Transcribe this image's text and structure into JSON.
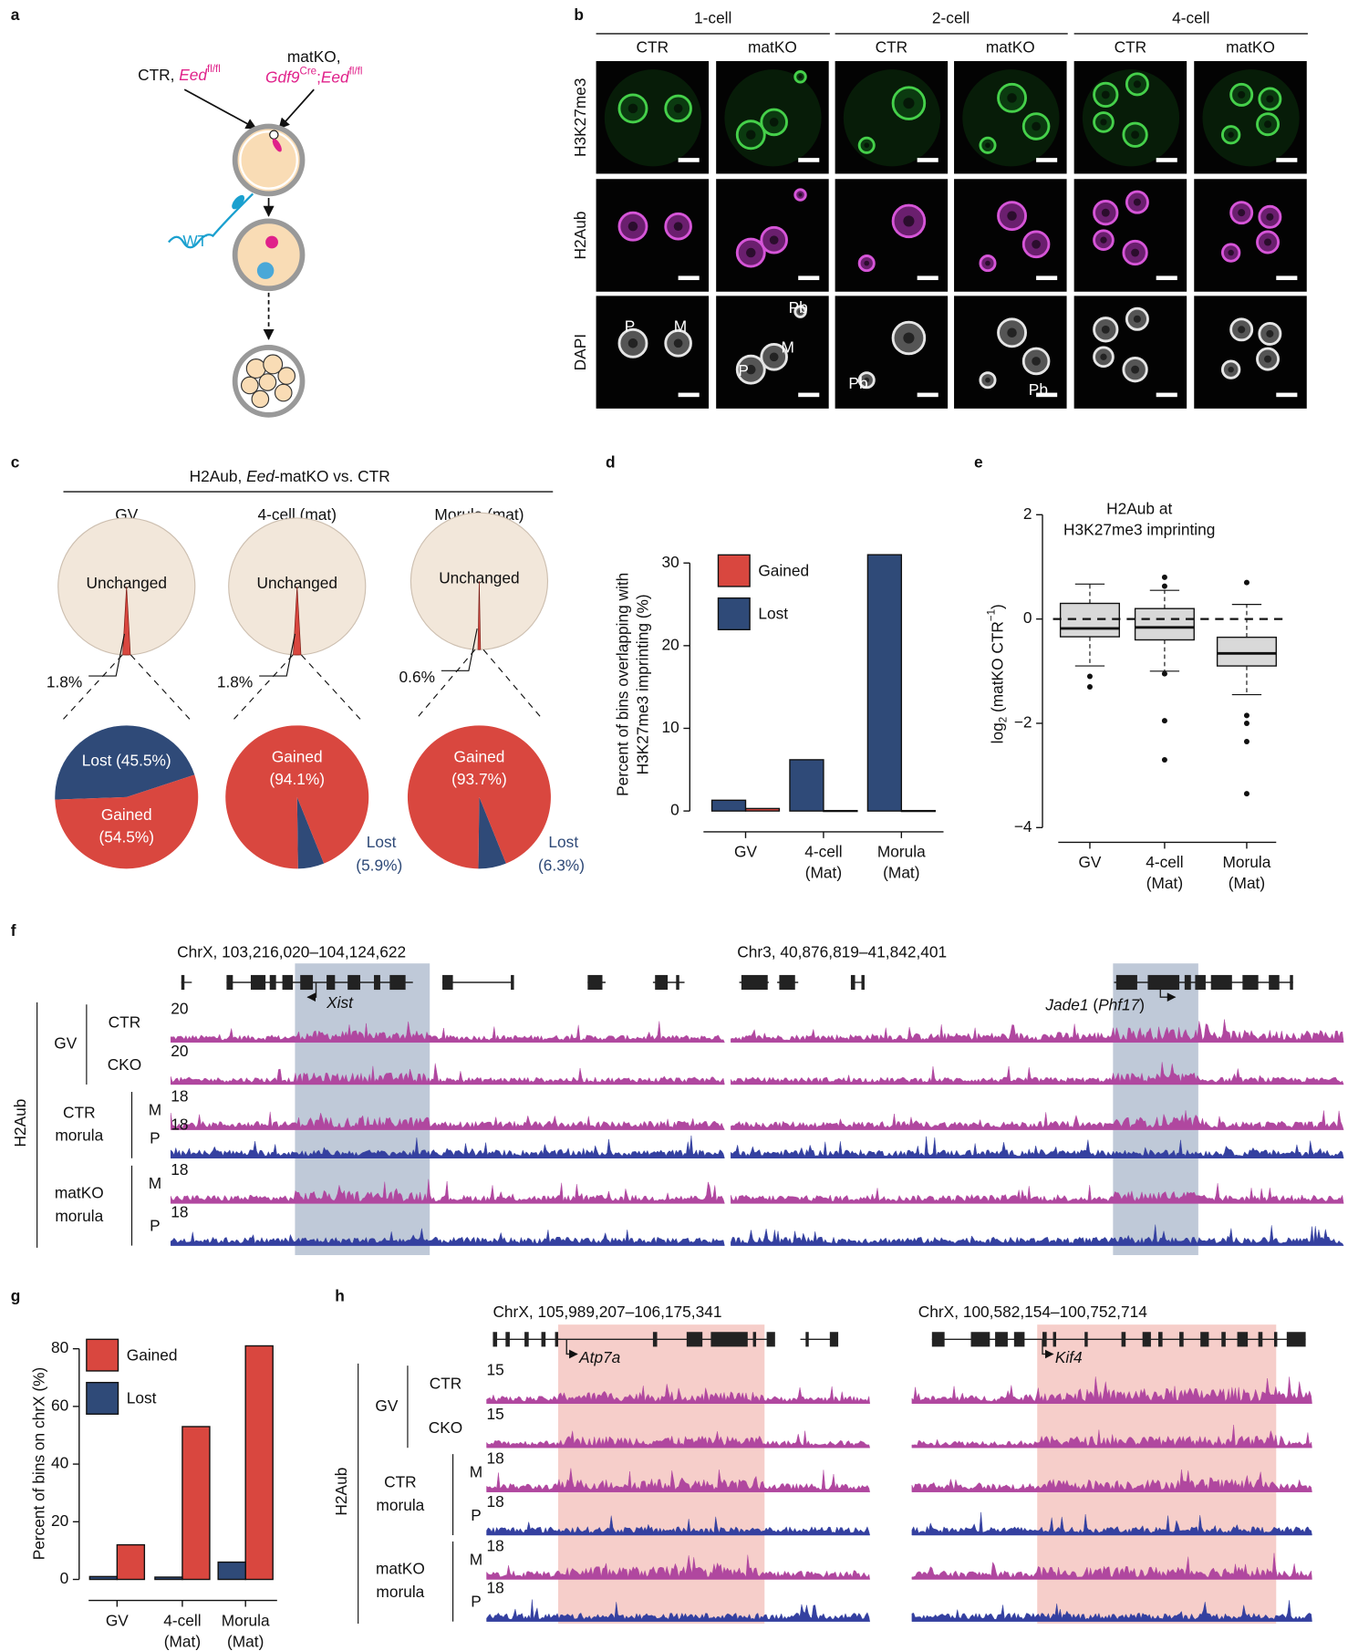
{
  "panels": {
    "a": {
      "label": "a",
      "ctr": {
        "name": "CTR, ",
        "gene": "Eed",
        "sup": "fl/fl"
      },
      "matko": {
        "name": "matKO,",
        "cre_gene": "Gdf9",
        "cre_sup": "Cre",
        "sep": ";",
        "gene": "Eed",
        "sup": "fl/fl"
      },
      "sperm": "WT"
    },
    "b": {
      "label": "b",
      "stages": [
        "1-cell",
        "2-cell",
        "4-cell"
      ],
      "conditions": [
        "CTR",
        "matKO",
        "CTR",
        "matKO",
        "CTR",
        "matKO"
      ],
      "rows": [
        "H3K27me3",
        "H2Aub",
        "DAPI"
      ],
      "dapi_labels": [
        [
          "P",
          "M"
        ],
        [
          "Pb",
          "M",
          "P"
        ],
        [
          "Pb"
        ],
        [
          "Pb"
        ]
      ]
    },
    "c": {
      "label": "c",
      "header": {
        "mark": "H2Aub, ",
        "gene": "Eed",
        "rest": "-matKO vs. CTR"
      }
    },
    "d": {
      "label": "d"
    },
    "e": {
      "label": "e"
    },
    "f": {
      "label": "f",
      "mark": "H2Aub",
      "regions": [
        {
          "coords": "ChrX, 103,216,020–104,124,622",
          "gene": "Xist"
        },
        {
          "coords": "Chr3, 40,876,819–41,842,401",
          "gene": "Jade1",
          "alias_open": " (",
          "alias": "Phf17",
          "alias_close": ")"
        }
      ],
      "groups": [
        {
          "label": [
            "GV"
          ],
          "rows": [
            {
              "label": "CTR",
              "scale": 20
            },
            {
              "label": "CKO",
              "scale": 20
            }
          ]
        },
        {
          "label": [
            "CTR",
            "morula"
          ],
          "rows": [
            {
              "label": "M",
              "scale": 18
            },
            {
              "label": "P",
              "scale": 18
            }
          ]
        },
        {
          "label": [
            "matKO",
            "morula"
          ],
          "rows": [
            {
              "label": "M",
              "scale": 18
            },
            {
              "label": "P",
              "scale": 18
            }
          ]
        }
      ]
    },
    "g": {
      "label": "g"
    },
    "h": {
      "label": "h",
      "mark": "H2Aub",
      "regions": [
        {
          "coords": "ChrX, 105,989,207–106,175,341",
          "gene": "Atp7a"
        },
        {
          "coords": "ChrX, 100,582,154–100,752,714",
          "gene": "Kif4"
        }
      ],
      "groups": [
        {
          "label": [
            "GV"
          ],
          "rows": [
            {
              "label": "CTR",
              "scale": 15
            },
            {
              "label": "CKO",
              "scale": 15
            }
          ]
        },
        {
          "label": [
            "CTR",
            "morula"
          ],
          "rows": [
            {
              "label": "M",
              "scale": 18
            },
            {
              "label": "P",
              "scale": 18
            }
          ]
        },
        {
          "label": [
            "matKO",
            "morula"
          ],
          "rows": [
            {
              "label": "M",
              "scale": 18
            },
            {
              "label": "P",
              "scale": 18
            }
          ]
        }
      ]
    }
  },
  "chart_data": [
    {
      "type": "pie",
      "title": "GV",
      "center_label": "Unchanged",
      "background_color": "#f2e7da",
      "color": "#d9473f",
      "values": [
        1.8
      ],
      "value_labels": [
        "1.8%"
      ],
      "detail": {
        "categories": [
          "Lost",
          "Gained"
        ],
        "values": [
          45.5,
          54.5
        ],
        "value_labels": [
          "(45.5%)",
          "(54.5%)"
        ],
        "colors": [
          "#2f4a78",
          "#d9473f"
        ]
      }
    },
    {
      "type": "pie",
      "title": "4-cell (mat)",
      "center_label": "Unchanged",
      "background_color": "#f2e7da",
      "color": "#d9473f",
      "values": [
        1.8
      ],
      "value_labels": [
        "1.8%"
      ],
      "detail": {
        "categories": [
          "Lost",
          "Gained"
        ],
        "values": [
          5.9,
          94.1
        ],
        "value_labels": [
          "(5.9%)",
          "(94.1%)"
        ],
        "colors": [
          "#2f4a78",
          "#d9473f"
        ]
      }
    },
    {
      "type": "pie",
      "title": "Morula (mat)",
      "center_label": "Unchanged",
      "background_color": "#f2e7da",
      "color": "#d9473f",
      "values": [
        0.6
      ],
      "value_labels": [
        "0.6%"
      ],
      "detail": {
        "categories": [
          "Lost",
          "Gained"
        ],
        "values": [
          6.3,
          93.7
        ],
        "value_labels": [
          "(6.3%)",
          "(93.7%)"
        ],
        "colors": [
          "#2f4a78",
          "#d9473f"
        ]
      }
    },
    {
      "type": "bar",
      "ylabel": [
        "Percent of bins overlapping with",
        "H3K27me3 imprinting (%)"
      ],
      "categories": [
        [
          "GV"
        ],
        [
          "4-cell",
          "(Mat)"
        ],
        [
          "Morula",
          "(Mat)"
        ]
      ],
      "series": [
        {
          "name": "Gained",
          "color": "#d9473f",
          "values": [
            0.3,
            0.05,
            0.05
          ]
        },
        {
          "name": "Lost",
          "color": "#2f4a78",
          "values": [
            1.3,
            6.2,
            31
          ]
        }
      ],
      "ylim": [
        -1.5,
        32
      ],
      "yticks": [
        0,
        10,
        20,
        30
      ]
    },
    {
      "type": "box",
      "title": [
        "H2Aub at",
        "H3K27me3 imprinting"
      ],
      "ylabel": {
        "text": "log",
        "sub": "2",
        "rest": " (matKO CTR",
        "sup": "−1",
        "close": ")"
      },
      "categories": [
        [
          "GV"
        ],
        [
          "4-cell",
          "(Mat)"
        ],
        [
          "Morula",
          "(Mat)"
        ]
      ],
      "color": "#d9d9d9",
      "hline": 0,
      "boxes": [
        {
          "whislo": -0.9,
          "q1": -0.34,
          "med": -0.18,
          "q3": 0.3,
          "whishi": 0.67,
          "fliers": [
            -1.1,
            -1.3
          ]
        },
        {
          "whislo": -1.0,
          "q1": -0.4,
          "med": -0.16,
          "q3": 0.2,
          "whishi": 0.55,
          "fliers": [
            0.8,
            0.63,
            -1.05,
            -1.95,
            -2.7
          ]
        },
        {
          "whislo": -1.45,
          "q1": -0.9,
          "med": -0.66,
          "q3": -0.35,
          "whishi": 0.28,
          "fliers": [
            0.7,
            -1.85,
            -2.0,
            -2.35,
            -3.35
          ]
        }
      ],
      "ylim": [
        -4.4,
        2.3
      ],
      "yticks": [
        2,
        0,
        {
          "value": -2,
          "label": "−2"
        },
        {
          "value": -4,
          "label": "−4"
        }
      ]
    },
    {
      "type": "bar",
      "ylabel": "Percent of bins on chrX (%)",
      "categories": [
        [
          "GV"
        ],
        [
          "4-cell",
          "(Mat)"
        ],
        [
          "Morula",
          "(Mat)"
        ]
      ],
      "series": [
        {
          "name": "Gained",
          "color": "#d9473f",
          "values": [
            12,
            53,
            81
          ]
        },
        {
          "name": "Lost",
          "color": "#2f4a78",
          "values": [
            1,
            0.8,
            6
          ]
        }
      ],
      "ylim": [
        -2,
        84
      ],
      "yticks": [
        0,
        20,
        40,
        60,
        80
      ]
    }
  ]
}
